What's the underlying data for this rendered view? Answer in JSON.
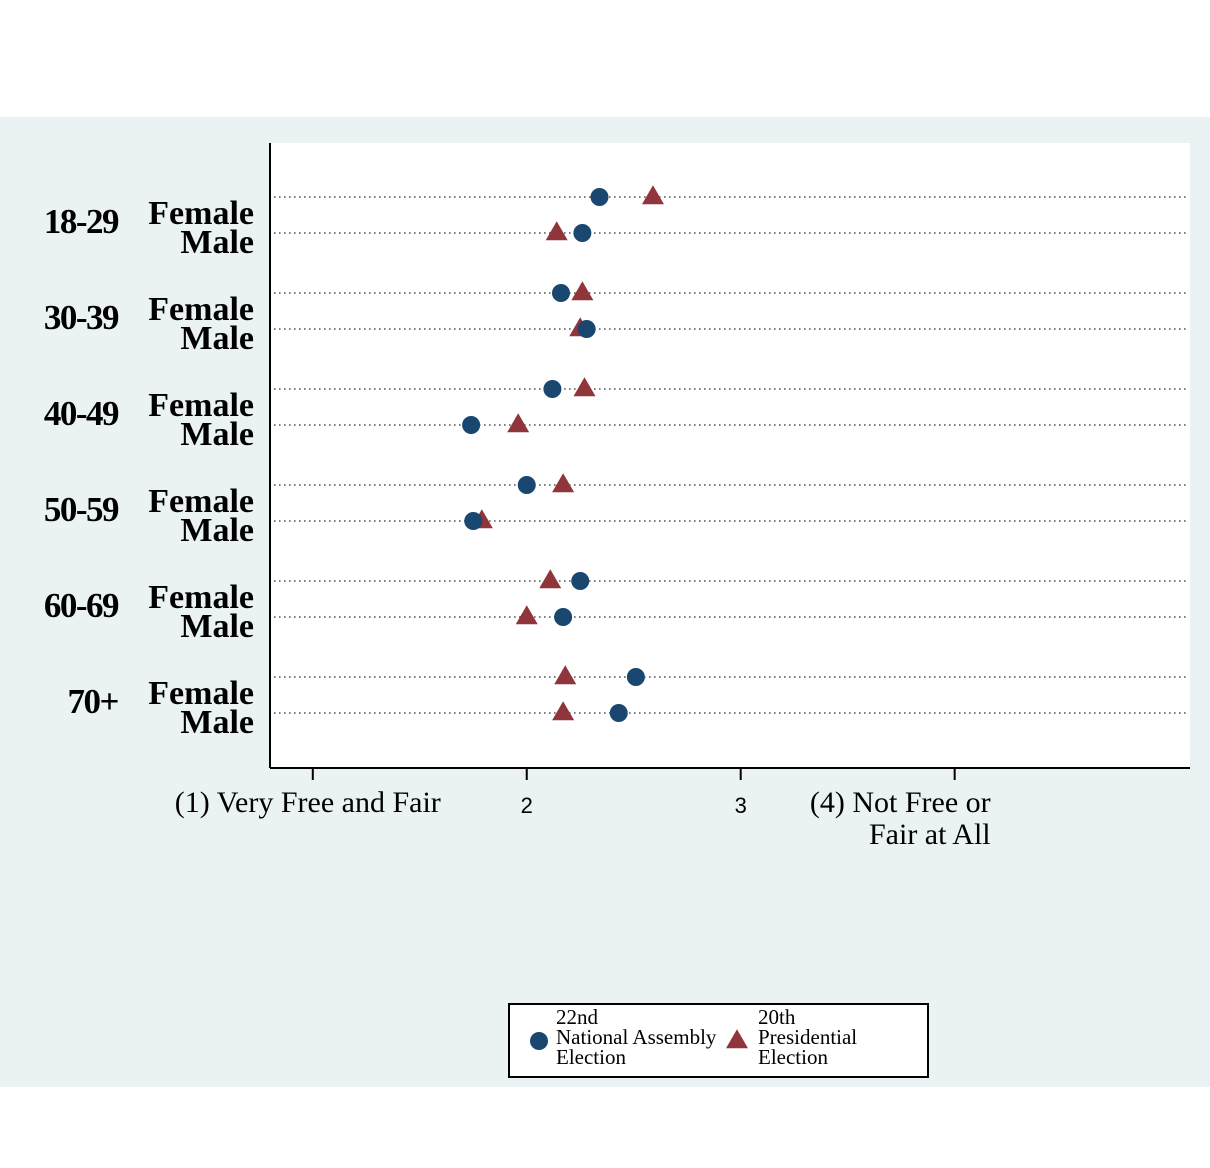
{
  "chart_data": {
    "type": "scatter",
    "xlim": [
      0.8,
      5.1
    ],
    "x_ticks": [
      {
        "value": 1,
        "label": "(1) Very Free and Fair"
      },
      {
        "value": 2,
        "label": "2"
      },
      {
        "value": 3,
        "label": "3"
      },
      {
        "value": 4,
        "label": "(4) Not Free or\nFair at All"
      }
    ],
    "groups": [
      {
        "age": "18-29",
        "rows": [
          {
            "sex": "Female",
            "assembly": 2.34,
            "presidential": 2.59
          },
          {
            "sex": "Male",
            "assembly": 2.26,
            "presidential": 2.14
          }
        ]
      },
      {
        "age": "30-39",
        "rows": [
          {
            "sex": "Female",
            "assembly": 2.16,
            "presidential": 2.26
          },
          {
            "sex": "Male",
            "assembly": 2.28,
            "presidential": 2.25
          }
        ]
      },
      {
        "age": "40-49",
        "rows": [
          {
            "sex": "Female",
            "assembly": 2.12,
            "presidential": 2.27
          },
          {
            "sex": "Male",
            "assembly": 1.74,
            "presidential": 1.96
          }
        ]
      },
      {
        "age": "50-59",
        "rows": [
          {
            "sex": "Female",
            "assembly": 2.0,
            "presidential": 2.17
          },
          {
            "sex": "Male",
            "assembly": 1.75,
            "presidential": 1.79
          }
        ]
      },
      {
        "age": "60-69",
        "rows": [
          {
            "sex": "Female",
            "assembly": 2.25,
            "presidential": 2.11
          },
          {
            "sex": "Male",
            "assembly": 2.17,
            "presidential": 2.0
          }
        ]
      },
      {
        "age": "70+",
        "rows": [
          {
            "sex": "Female",
            "assembly": 2.51,
            "presidential": 2.18
          },
          {
            "sex": "Male",
            "assembly": 2.43,
            "presidential": 2.17
          }
        ]
      }
    ],
    "series": [
      {
        "key": "assembly",
        "name": "22nd\nNational Assembly\nElection",
        "marker": "circle",
        "color": "#1a476f"
      },
      {
        "key": "presidential",
        "name": "20th\nPresidential\nElection",
        "marker": "triangle",
        "color": "#90353b"
      }
    ],
    "grid": "dotted-horizontal",
    "legend_position": "bottom-center",
    "colors": {
      "outer_background": "#eaf2f3",
      "plot_background": "#ffffff",
      "grid": "#555555",
      "axis": "#000000"
    }
  }
}
